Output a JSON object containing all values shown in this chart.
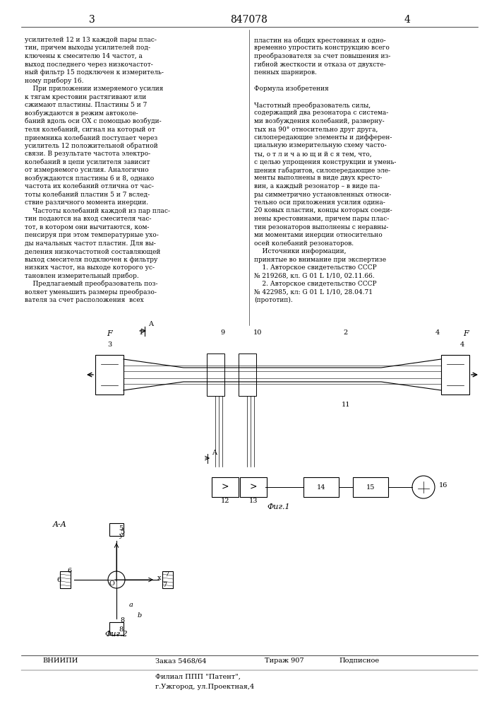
{
  "bg_color": "#ffffff",
  "page_width": 7.07,
  "page_height": 10.0,
  "header_page_left": "3",
  "header_patent": "847078",
  "header_page_right": "4",
  "left_text": [
    "усилителей 12 и 13 каждой пары плас-",
    "тин, причем выходы усилителей под-",
    "ключены к смесителю 14 частот, а",
    "выход последнего через низкочастот-",
    "ный фильтр 15 подключен к измеритель-",
    "ному прибору 16.",
    "    При приложении измеряемого усилия",
    "к тягам крестовин растягивают или",
    "сжимают пластины. Пластины 5 и 7",
    "возбуждаются в режим автоколе-",
    "баний вдоль оси OX с помощью возбуди-",
    "теля колебаний, сигнал на который от",
    "приемника колебаний поступает через",
    "усилитель 12 положительной обратной",
    "связи. В результате частота электро-",
    "колебаний в цепи усилителя зависит",
    "от измеряемого усилия. Аналогично",
    "возбуждаются пластины 6 и 8, однако",
    "частота их колебаний отлична от час-",
    "тоты колебаний пластин 5 и 7 вслед-",
    "ствие различного момента инерции.",
    "    Частоты колебаний каждой из пар плас-",
    "тин подаются на вход смесителя час-",
    "тот, в котором они вычитаются, ком-",
    "пенсируя при этом температурные ухо-",
    "ды начальных частот пластин. Для вы-",
    "деления низкочастотной составляющей",
    "выход смесителя подключен к фильтру",
    "низких частот, на выходе которого ус-",
    "тановлен измерительный прибор.",
    "    Предлагаемый преобразователь поз-",
    "воляет уменьшить размеры преобразо-",
    "вателя за счет расположения  всех"
  ],
  "right_text": [
    "пластин на общих крестовинах и одно-",
    "временно упростить конструкцию всего",
    "преобразователя за счет повышения из-",
    "гибной жесткости и отказа от двухсте-",
    "пенных шарниров.",
    "",
    "Формула изобретения",
    "",
    "Частотный преобразователь силы,",
    "содержащий два резонатора с система-",
    "ми возбуждения колебаний, разверну-",
    "тых на 90° относительно друг друга,",
    "силопередающие элементы и дифферен-",
    "циальную измерительную схему часто-",
    "ты, о т л и ч а ю щ и й с я тем, что,",
    "с целью упрощения конструкции и умень-",
    "шения габаритов, силопередающие эле-",
    "менты выполнены в виде двух кресто-",
    "вин, а каждый резонатор – в виде па-",
    "ры симметрично установленных относи-",
    "тельно оси приложения усилия одина-",
    "20 ковых пластин, концы которых соеди-",
    "нены крестовинами, причем пары плас-",
    "тин резонаторов выполнены с неравны-",
    "ми моментами инерции относительно",
    "осей колебаний резонаторов.",
    "    Источники информации,",
    "принятые во внимание при экспертизе",
    "    1. Авторское свидетельство СССР",
    "№ 219268, кл. G 01 L 1/10, 02.11.66.",
    "    2. Авторское свидетельство СССР",
    "№ 422985, кл: G 01 L 1/10, 28.04.71",
    "(прототип)."
  ],
  "fig1_label": "Фиг.1",
  "fig2_label": "Фиг.2",
  "aa_label": "A-A",
  "footer_vniipi": "ВНИИПИ",
  "footer_order": "Заказ 5468/64",
  "footer_tirazh": "Тираж 907",
  "footer_podp": "Подписное",
  "footer_filial": "Филиал ППП \"Патент\",",
  "footer_city": "г.Ужгород, ул.Проектная,4"
}
